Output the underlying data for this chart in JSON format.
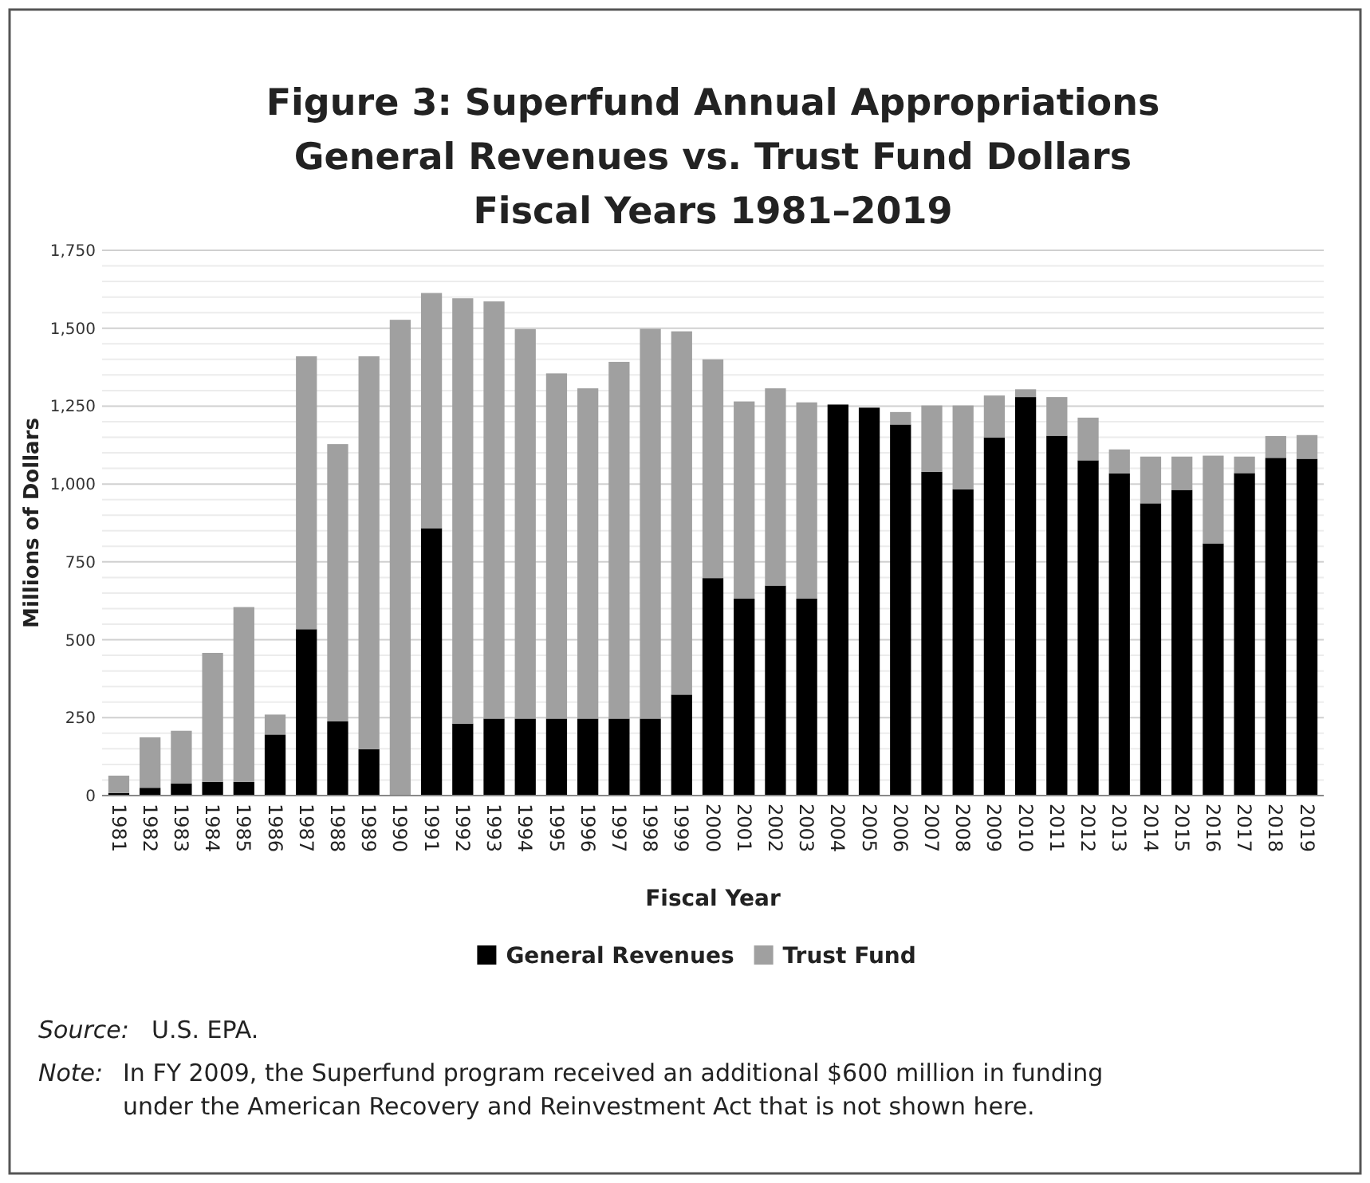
{
  "chart_data": {
    "type": "bar",
    "stacked": true,
    "title": "Figure 3:  Superfund Annual Appropriations\nGeneral Revenues vs. Trust Fund Dollars\nFiscal Years 1981–2019",
    "xlabel": "Fiscal Year",
    "ylabel": "Millions of Dollars",
    "categories": [
      "1981",
      "1982",
      "1983",
      "1984",
      "1985",
      "1986",
      "1987",
      "1988",
      "1989",
      "1990",
      "1991",
      "1992",
      "1993",
      "1994",
      "1995",
      "1996",
      "1997",
      "1998",
      "1999",
      "2000",
      "2001",
      "2002",
      "2003",
      "2004",
      "2005",
      "2006",
      "2007",
      "2008",
      "2009",
      "2010",
      "2011",
      "2012",
      "2013",
      "2014",
      "2015",
      "2016",
      "2017",
      "2018",
      "2019"
    ],
    "series": [
      {
        "name": "General Revenues",
        "color": "#000000",
        "values": [
          8,
          25,
          39,
          44,
          44,
          196,
          534,
          238,
          149,
          0,
          858,
          231,
          247,
          247,
          247,
          247,
          247,
          247,
          324,
          698,
          632,
          674,
          632,
          1255,
          1245,
          1191,
          1039,
          983,
          1149,
          1279,
          1155,
          1076,
          1034,
          938,
          981,
          809,
          1035,
          1084,
          1081
        ]
      },
      {
        "name": "Trust Fund",
        "color": "#a0a0a0",
        "values": [
          56,
          162,
          169,
          414,
          561,
          64,
          876,
          890,
          1261,
          1527,
          755,
          1365,
          1339,
          1250,
          1108,
          1060,
          1145,
          1251,
          1166,
          702,
          633,
          633,
          630,
          0,
          0,
          40,
          213,
          269,
          135,
          25,
          124,
          137,
          77,
          150,
          107,
          282,
          53,
          70,
          76
        ]
      }
    ],
    "ylim": [
      0,
      1750
    ],
    "yticks": [
      0,
      {
        "value": 50,
        "label": null
      },
      {
        "value": 100,
        "label": null
      },
      {
        "value": 150,
        "label": null
      },
      {
        "value": 200,
        "label": null
      },
      250,
      {
        "value": 300,
        "label": null
      },
      {
        "value": 350,
        "label": null
      },
      {
        "value": 400,
        "label": null
      },
      {
        "value": 450,
        "label": null
      },
      500,
      {
        "value": 550,
        "label": null
      },
      {
        "value": 600,
        "label": null
      },
      {
        "value": 650,
        "label": null
      },
      {
        "value": 700,
        "label": null
      },
      750,
      {
        "value": 800,
        "label": null
      },
      {
        "value": 850,
        "label": null
      },
      {
        "value": 900,
        "label": null
      },
      {
        "value": 950,
        "label": null
      },
      {
        "value": 1000,
        "label": "1,000"
      },
      {
        "value": 1050,
        "label": null
      },
      {
        "value": 1100,
        "label": null
      },
      {
        "value": 1150,
        "label": null
      },
      {
        "value": 1200,
        "label": null
      },
      {
        "value": 1250,
        "label": "1,250"
      },
      {
        "value": 1300,
        "label": null
      },
      {
        "value": 1350,
        "label": null
      },
      {
        "value": 1400,
        "label": null
      },
      {
        "value": 1450,
        "label": null
      },
      {
        "value": 1500,
        "label": "1,500"
      },
      {
        "value": 1550,
        "label": null
      },
      {
        "value": 1600,
        "label": null
      },
      {
        "value": 1650,
        "label": null
      },
      {
        "value": 1700,
        "label": null
      },
      {
        "value": 1750,
        "label": "1,750"
      }
    ],
    "grid": "y",
    "legend": "bottom",
    "annotations": [
      "Source: U.S. EPA.",
      "Note: In FY 2009, the Superfund program received an additional $600 million in funding under the American Recovery and Reinvestment Act that is not shown here."
    ]
  }
}
